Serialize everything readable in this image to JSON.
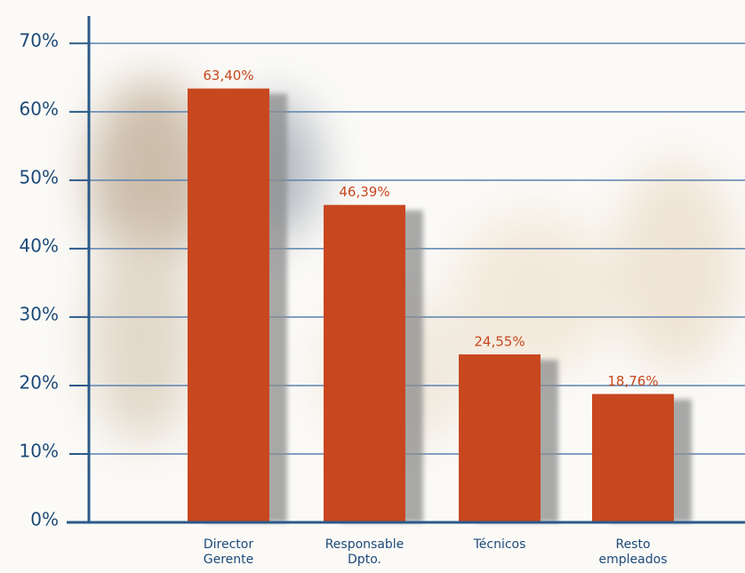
{
  "chart_data": {
    "type": "bar",
    "categories": [
      [
        "Director",
        "Gerente"
      ],
      [
        "Responsable",
        "Dpto."
      ],
      [
        "Técnicos"
      ],
      [
        "Resto",
        "empleados"
      ]
    ],
    "values": [
      63.4,
      46.39,
      24.55,
      18.76
    ],
    "value_labels": [
      "63,40%",
      "46,39%",
      "24,55%",
      "18,76%"
    ],
    "color": "#c9471f",
    "ylim": [
      0,
      74
    ],
    "yticks": [
      {
        "value": 0,
        "label": "0%"
      },
      {
        "value": 10,
        "label": "10%"
      },
      {
        "value": 20,
        "label": "20%"
      },
      {
        "value": 30,
        "label": "30%"
      },
      {
        "value": 40,
        "label": "40%"
      },
      {
        "value": 50,
        "label": "50%"
      },
      {
        "value": 60,
        "label": "60%"
      },
      {
        "value": 70,
        "label": "70%"
      }
    ],
    "grid": true
  }
}
